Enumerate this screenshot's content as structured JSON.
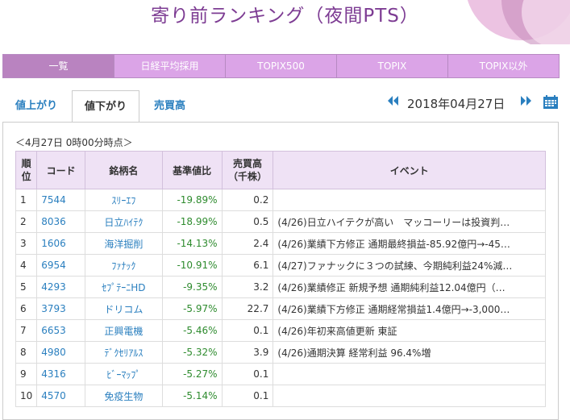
{
  "page": {
    "title": "寄り前ランキング（夜間PTS）"
  },
  "tabs": [
    {
      "label": "一覧",
      "active": true
    },
    {
      "label": "日経平均採用"
    },
    {
      "label": "TOPIX500"
    },
    {
      "label": "TOPIX"
    },
    {
      "label": "TOPIX以外"
    }
  ],
  "subtabs": [
    {
      "label": "値上がり"
    },
    {
      "label": "値下がり",
      "active": true
    },
    {
      "label": "売買高"
    }
  ],
  "date": {
    "value": "2018年04月27日",
    "prev_icon": "double-left-arrow",
    "next_icon": "double-right-arrow",
    "calendar_icon": "calendar"
  },
  "table": {
    "as_of": "＜4月27日 0時00分時点＞",
    "headers": {
      "rank": "順位",
      "code": "コード",
      "name": "銘柄名",
      "change": "基準値比",
      "volume": "売買高（千株）",
      "event": "イベント"
    },
    "rows": [
      {
        "rank": "1",
        "code": "7544",
        "name": "ｽﾘｰｴﾌ",
        "change": "-19.89%",
        "volume": "0.2",
        "event": ""
      },
      {
        "rank": "2",
        "code": "8036",
        "name": "日立ﾊｲﾃｸ",
        "change": "-18.99%",
        "volume": "0.5",
        "event": "(4/26)日立ハイテクが高い　マッコーリーは投資判…"
      },
      {
        "rank": "3",
        "code": "1606",
        "name": "海洋掘削",
        "change": "-14.13%",
        "volume": "2.4",
        "event": "(4/26)業績下方修正 通期最終損益-85.92億円→-45…"
      },
      {
        "rank": "4",
        "code": "6954",
        "name": "ﾌｧﾅｯｸ",
        "change": "-10.91%",
        "volume": "6.1",
        "event": "(4/27)ファナックに３つの試練、今期純利益24%減…"
      },
      {
        "rank": "5",
        "code": "4293",
        "name": "ｾﾌﾟﾃｰﾆHD",
        "change": "-9.35%",
        "volume": "3.2",
        "event": "(4/26)業績修正 新規予想 通期純利益12.04億円（…"
      },
      {
        "rank": "6",
        "code": "3793",
        "name": "ドリコム",
        "change": "-5.97%",
        "volume": "22.7",
        "event": "(4/26)業績下方修正 通期経常損益1.4億円→-3,000…"
      },
      {
        "rank": "7",
        "code": "6653",
        "name": "正興電機",
        "change": "-5.46%",
        "volume": "0.1",
        "event": "(4/26)年初来高値更新 東証"
      },
      {
        "rank": "8",
        "code": "4980",
        "name": "ﾃﾞｸｾﾘｱﾙｽ",
        "change": "-5.32%",
        "volume": "3.9",
        "event": "(4/26)通期決算 経常利益 96.4%増"
      },
      {
        "rank": "9",
        "code": "4316",
        "name": "ﾋﾞｰﾏｯﾌﾟ",
        "change": "-5.27%",
        "volume": "0.1",
        "event": ""
      },
      {
        "rank": "10",
        "code": "4570",
        "name": "免疫生物",
        "change": "-5.14%",
        "volume": "0.1",
        "event": ""
      }
    ]
  }
}
